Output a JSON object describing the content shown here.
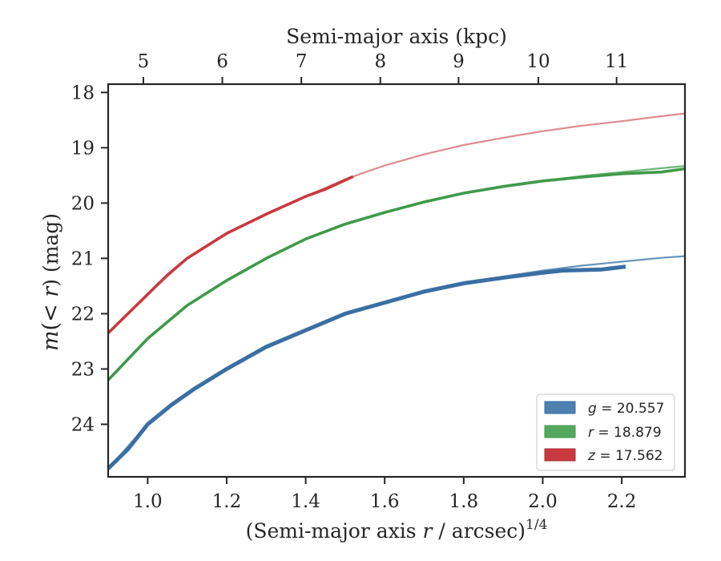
{
  "chart_data": {
    "type": "line",
    "xlabel": "(Semi-major axis ",
    "xlabel_var": "r",
    "xlabel_tail": " / arcsec)",
    "xlabel_sup": "1/4",
    "ylabel_pre": "m",
    "ylabel_mid": "(< ",
    "ylabel_var": "r",
    "ylabel_post": ") (mag)",
    "top_xlabel": "Semi-major axis (kpc)",
    "xlim": [
      0.9,
      2.36
    ],
    "ylim": [
      24.95,
      17.85
    ],
    "y_inverted": true,
    "xticks": [
      1.0,
      1.2,
      1.4,
      1.6,
      1.8,
      2.0,
      2.2
    ],
    "xtick_labels": [
      "1.0",
      "1.2",
      "1.4",
      "1.6",
      "1.8",
      "2.0",
      "2.2"
    ],
    "yticks": [
      18,
      19,
      20,
      21,
      22,
      23,
      24
    ],
    "ytick_labels": [
      "18",
      "19",
      "20",
      "21",
      "22",
      "23",
      "24"
    ],
    "top_ticks_x": [
      0.989,
      1.189,
      1.389,
      1.589,
      1.787,
      1.989,
      2.187
    ],
    "top_tick_labels": [
      "5",
      "6",
      "7",
      "8",
      "9",
      "10",
      "11"
    ],
    "grid": false,
    "legend_position": "lower-right",
    "series": [
      {
        "key": "g",
        "legend_var": "g",
        "legend_val": " = 20.557",
        "color": "#4c81b0",
        "band_color": "#3a6fa3",
        "measured": [
          [
            0.9,
            24.8
          ],
          [
            0.95,
            24.45
          ],
          [
            1.0,
            24.0
          ],
          [
            1.06,
            23.65
          ],
          [
            1.12,
            23.35
          ],
          [
            1.2,
            23.0
          ],
          [
            1.3,
            22.6
          ],
          [
            1.4,
            22.3
          ],
          [
            1.5,
            22.0
          ],
          [
            1.6,
            21.8
          ],
          [
            1.7,
            21.6
          ],
          [
            1.8,
            21.45
          ],
          [
            1.9,
            21.35
          ],
          [
            2.0,
            21.26
          ],
          [
            2.05,
            21.22
          ],
          [
            2.15,
            21.2
          ],
          [
            2.21,
            21.15
          ]
        ],
        "model": [
          [
            0.9,
            24.8
          ],
          [
            1.0,
            24.0
          ],
          [
            1.1,
            23.45
          ],
          [
            1.2,
            23.0
          ],
          [
            1.3,
            22.6
          ],
          [
            1.4,
            22.3
          ],
          [
            1.5,
            22.02
          ],
          [
            1.6,
            21.8
          ],
          [
            1.7,
            21.6
          ],
          [
            1.8,
            21.45
          ],
          [
            1.9,
            21.33
          ],
          [
            2.0,
            21.22
          ],
          [
            2.1,
            21.13
          ],
          [
            2.2,
            21.06
          ],
          [
            2.3,
            20.99
          ],
          [
            2.36,
            20.96
          ]
        ]
      },
      {
        "key": "r",
        "legend_var": "r",
        "legend_val": " = 18.879",
        "color": "#55a95f",
        "band_color": "#3f9a4a",
        "measured": [
          [
            0.9,
            23.2
          ],
          [
            1.0,
            22.45
          ],
          [
            1.1,
            21.85
          ],
          [
            1.2,
            21.4
          ],
          [
            1.3,
            21.0
          ],
          [
            1.4,
            20.65
          ],
          [
            1.5,
            20.38
          ],
          [
            1.6,
            20.17
          ],
          [
            1.7,
            19.98
          ],
          [
            1.8,
            19.82
          ],
          [
            1.9,
            19.7
          ],
          [
            2.0,
            19.6
          ],
          [
            2.1,
            19.53
          ],
          [
            2.2,
            19.47
          ],
          [
            2.3,
            19.44
          ],
          [
            2.36,
            19.38
          ]
        ],
        "model": [
          [
            0.9,
            23.2
          ],
          [
            1.0,
            22.45
          ],
          [
            1.1,
            21.85
          ],
          [
            1.2,
            21.4
          ],
          [
            1.3,
            21.0
          ],
          [
            1.4,
            20.65
          ],
          [
            1.5,
            20.38
          ],
          [
            1.6,
            20.17
          ],
          [
            1.7,
            19.98
          ],
          [
            1.8,
            19.82
          ],
          [
            1.9,
            19.7
          ],
          [
            2.0,
            19.6
          ],
          [
            2.1,
            19.51
          ],
          [
            2.2,
            19.44
          ],
          [
            2.3,
            19.37
          ],
          [
            2.36,
            19.33
          ]
        ]
      },
      {
        "key": "z",
        "legend_var": "z",
        "legend_val": " = 17.562",
        "color": "#d9767a",
        "band_color": "#c83a3f",
        "measured": [
          [
            0.9,
            22.35
          ],
          [
            0.95,
            22.0
          ],
          [
            1.0,
            21.65
          ],
          [
            1.05,
            21.3
          ],
          [
            1.1,
            21.0
          ],
          [
            1.2,
            20.55
          ],
          [
            1.3,
            20.2
          ],
          [
            1.4,
            19.88
          ],
          [
            1.45,
            19.75
          ],
          [
            1.52,
            19.52
          ]
        ],
        "model": [
          [
            0.9,
            22.35
          ],
          [
            1.0,
            21.65
          ],
          [
            1.1,
            21.0
          ],
          [
            1.2,
            20.55
          ],
          [
            1.3,
            20.2
          ],
          [
            1.4,
            19.88
          ],
          [
            1.5,
            19.57
          ],
          [
            1.6,
            19.32
          ],
          [
            1.7,
            19.12
          ],
          [
            1.8,
            18.95
          ],
          [
            1.9,
            18.82
          ],
          [
            2.0,
            18.7
          ],
          [
            2.1,
            18.6
          ],
          [
            2.2,
            18.52
          ],
          [
            2.3,
            18.43
          ],
          [
            2.36,
            18.38
          ]
        ]
      }
    ]
  }
}
